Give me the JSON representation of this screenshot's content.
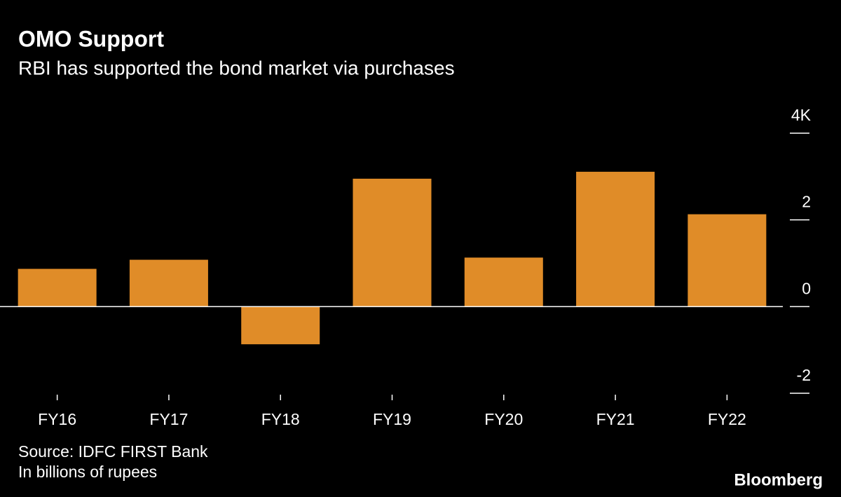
{
  "chart_data": {
    "type": "bar",
    "title": "OMO Support",
    "subtitle": "RBI has supported the bond market via purchases",
    "categories": [
      "FY16",
      "FY17",
      "FY18",
      "FY19",
      "FY20",
      "FY21",
      "FY22"
    ],
    "values": [
      0.87,
      1.08,
      -0.87,
      2.95,
      1.13,
      3.11,
      2.13
    ],
    "color": "#e08c28",
    "ylim": [
      -2,
      4
    ],
    "yticks": [
      {
        "value": 4,
        "label": "4K"
      },
      2,
      0,
      -2
    ],
    "source": "Source: IDFC FIRST Bank",
    "note": "In billions of rupees",
    "brand": "Bloomberg"
  }
}
